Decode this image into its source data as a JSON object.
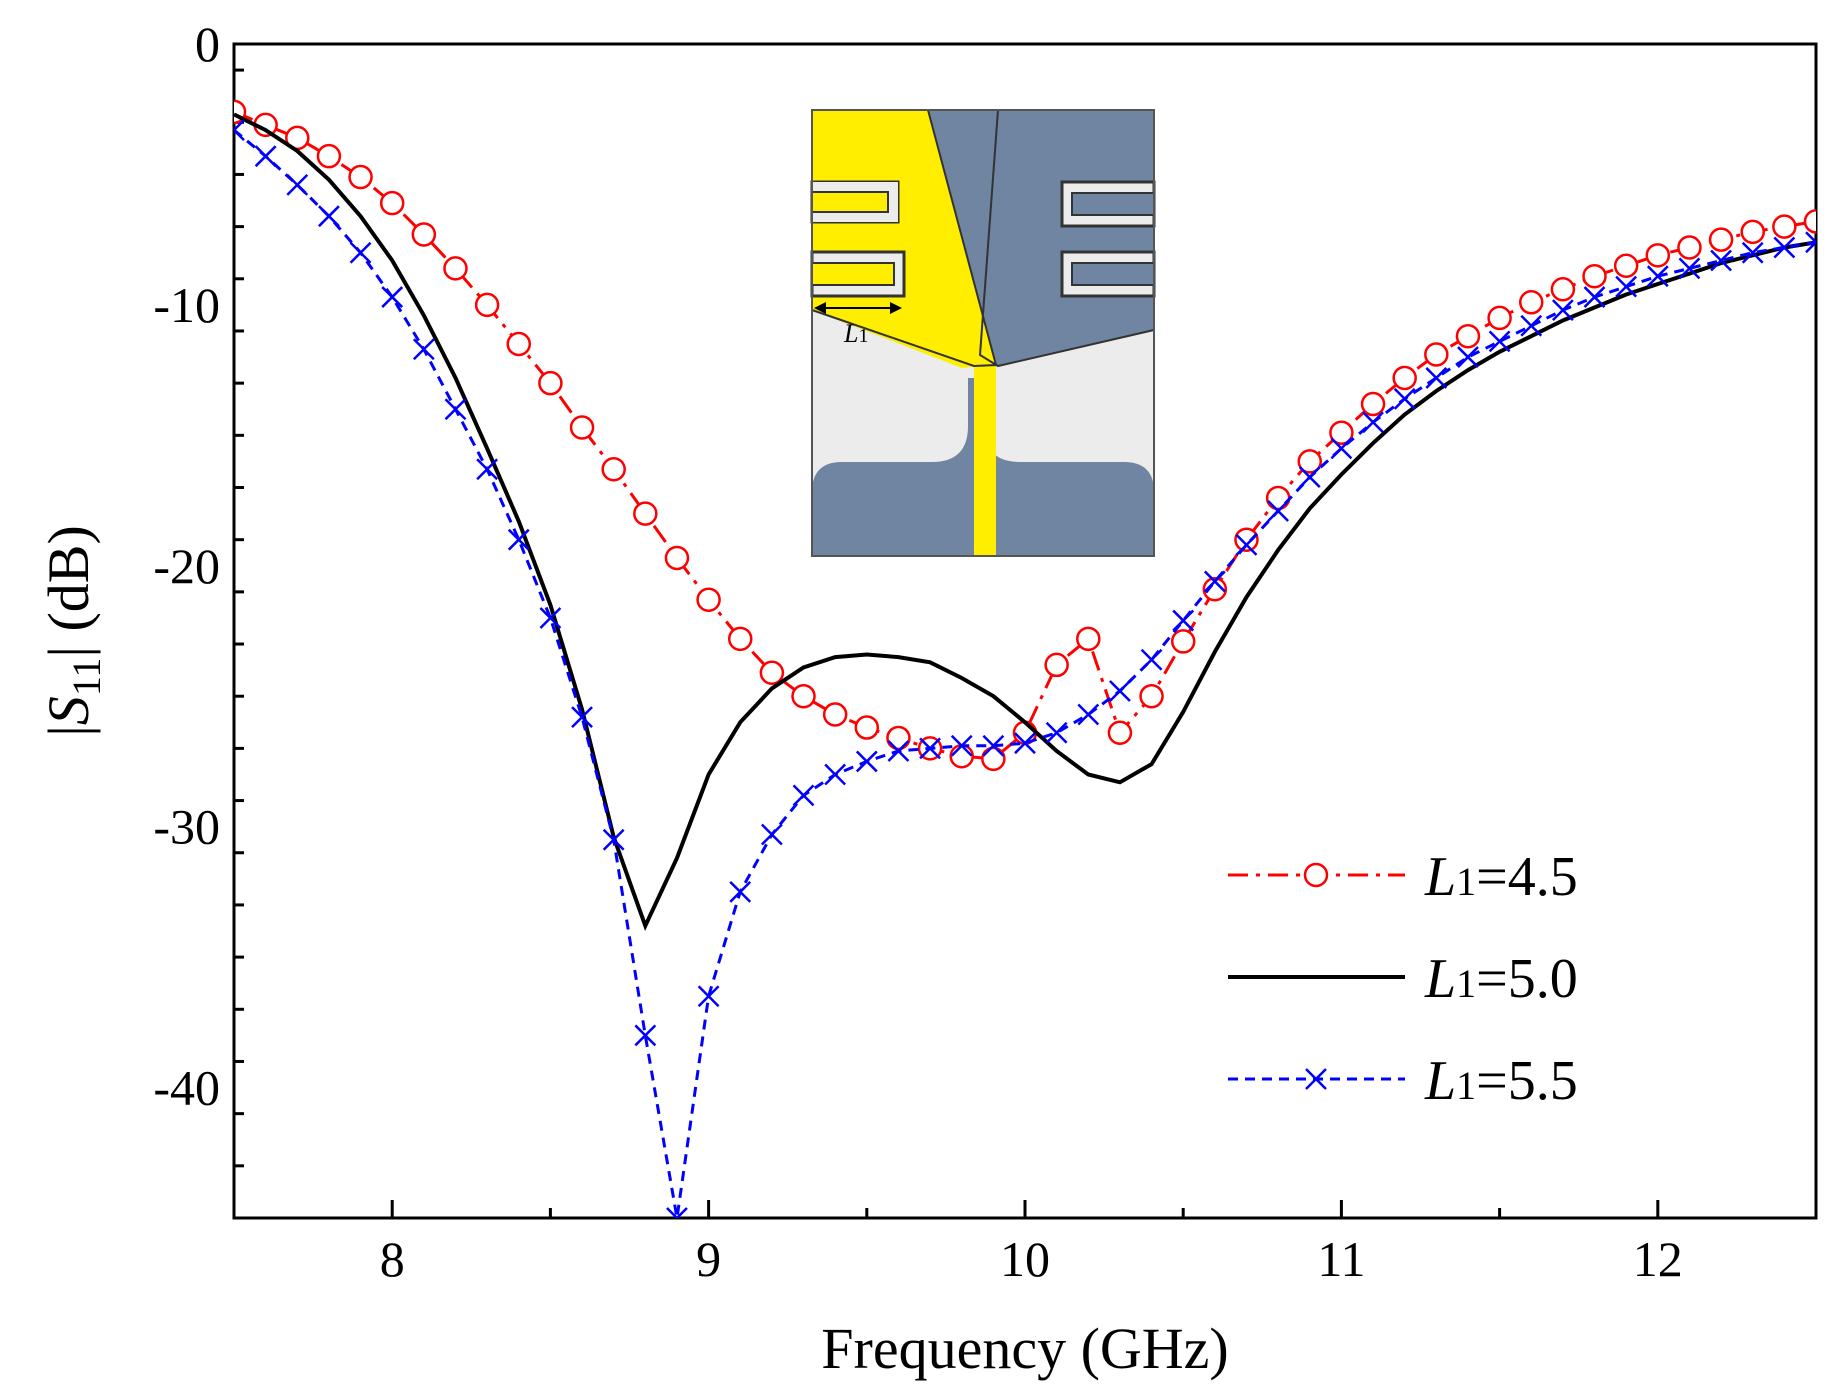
{
  "chart_data": {
    "type": "line",
    "title": "",
    "xlabel": "Frequency (GHz)",
    "ylabel": {
      "prefix": "|",
      "var": "S",
      "sub": "11",
      "suffix": "| (dB)"
    },
    "xlim": [
      7.5,
      12.5
    ],
    "ylim": [
      -45,
      0
    ],
    "xticks": [
      8,
      9,
      10,
      11,
      12
    ],
    "xtick_labels": [
      "8",
      "9",
      "10",
      "11",
      "12"
    ],
    "yticks": [
      0,
      -10,
      -20,
      -30,
      -40
    ],
    "ytick_labels": [
      "0",
      "-10",
      "-20",
      "-30",
      "-40"
    ],
    "grid": false,
    "legend_position": "bottom-right",
    "series": [
      {
        "name": "L1=4.5",
        "label_var": "L",
        "label_sub": "1",
        "label_rest": "=4.5",
        "color": "#ff0000",
        "line_style": "dash-dot",
        "marker": "circle",
        "x": [
          7.5,
          7.6,
          7.7,
          7.8,
          7.9,
          8.0,
          8.1,
          8.2,
          8.3,
          8.4,
          8.5,
          8.6,
          8.7,
          8.8,
          8.9,
          9.0,
          9.1,
          9.2,
          9.3,
          9.4,
          9.5,
          9.6,
          9.7,
          9.8,
          9.9,
          10.0,
          10.1,
          10.2,
          10.3,
          10.4,
          10.5,
          10.6,
          10.7,
          10.8,
          10.9,
          11.0,
          11.1,
          11.2,
          11.3,
          11.4,
          11.5,
          11.6,
          11.7,
          11.8,
          11.9,
          12.0,
          12.1,
          12.2,
          12.3,
          12.4,
          12.5
        ],
        "y": [
          -2.6,
          -3.1,
          -3.6,
          -4.3,
          -5.1,
          -6.1,
          -7.3,
          -8.6,
          -10.0,
          -11.5,
          -13.0,
          -14.7,
          -16.3,
          -18.0,
          -19.7,
          -21.3,
          -22.8,
          -24.1,
          -25.0,
          -25.7,
          -26.2,
          -26.6,
          -27.0,
          -27.3,
          -27.4,
          -26.4,
          -23.8,
          -22.8,
          -26.4,
          -25.0,
          -22.9,
          -20.9,
          -19.0,
          -17.4,
          -16.0,
          -14.9,
          -13.8,
          -12.8,
          -11.9,
          -11.2,
          -10.5,
          -9.9,
          -9.4,
          -8.9,
          -8.5,
          -8.1,
          -7.8,
          -7.5,
          -7.2,
          -7.0,
          -6.8
        ]
      },
      {
        "name": "L1=5.0",
        "label_var": "L",
        "label_sub": "1",
        "label_rest": "=5.0",
        "color": "#000000",
        "line_style": "solid",
        "marker": "none",
        "x": [
          7.5,
          7.6,
          7.7,
          7.8,
          7.9,
          8.0,
          8.1,
          8.2,
          8.3,
          8.4,
          8.5,
          8.6,
          8.7,
          8.8,
          8.9,
          9.0,
          9.1,
          9.2,
          9.3,
          9.4,
          9.5,
          9.6,
          9.7,
          9.8,
          9.9,
          10.0,
          10.1,
          10.2,
          10.3,
          10.4,
          10.5,
          10.6,
          10.7,
          10.8,
          10.9,
          11.0,
          11.1,
          11.2,
          11.3,
          11.4,
          11.5,
          11.6,
          11.7,
          11.8,
          11.9,
          12.0,
          12.1,
          12.2,
          12.3,
          12.4,
          12.5
        ],
        "y": [
          -2.7,
          -3.3,
          -4.1,
          -5.2,
          -6.6,
          -8.3,
          -10.4,
          -12.8,
          -15.5,
          -18.3,
          -21.5,
          -25.5,
          -30.4,
          -33.8,
          -31.2,
          -28.0,
          -26.0,
          -24.7,
          -23.9,
          -23.5,
          -23.4,
          -23.5,
          -23.7,
          -24.3,
          -25.0,
          -26.0,
          -27.1,
          -28.0,
          -28.3,
          -27.6,
          -25.6,
          -23.3,
          -21.2,
          -19.4,
          -17.8,
          -16.5,
          -15.3,
          -14.2,
          -13.3,
          -12.5,
          -11.8,
          -11.2,
          -10.6,
          -10.1,
          -9.6,
          -9.2,
          -8.8,
          -8.4,
          -8.1,
          -7.8,
          -7.6
        ]
      },
      {
        "name": "L1=5.5",
        "label_var": "L",
        "label_sub": "1",
        "label_rest": "=5.5",
        "color": "#0000ff",
        "line_style": "dashed",
        "marker": "x",
        "x": [
          7.5,
          7.6,
          7.7,
          7.8,
          7.9,
          8.0,
          8.1,
          8.2,
          8.3,
          8.4,
          8.5,
          8.6,
          8.7,
          8.8,
          8.9,
          9.0,
          9.1,
          9.2,
          9.3,
          9.4,
          9.5,
          9.6,
          9.7,
          9.8,
          9.9,
          10.0,
          10.1,
          10.2,
          10.3,
          10.4,
          10.5,
          10.6,
          10.7,
          10.8,
          10.9,
          11.0,
          11.1,
          11.2,
          11.3,
          11.4,
          11.5,
          11.6,
          11.7,
          11.8,
          11.9,
          12.0,
          12.1,
          12.2,
          12.3,
          12.4,
          12.5
        ],
        "y": [
          -3.3,
          -4.3,
          -5.4,
          -6.6,
          -8.0,
          -9.7,
          -11.7,
          -14.0,
          -16.3,
          -19.0,
          -22.0,
          -25.8,
          -30.5,
          -38.0,
          -45.0,
          -36.5,
          -32.5,
          -30.3,
          -28.8,
          -28.0,
          -27.5,
          -27.1,
          -27.0,
          -26.9,
          -26.9,
          -26.8,
          -26.4,
          -25.7,
          -24.8,
          -23.6,
          -22.1,
          -20.6,
          -19.2,
          -17.9,
          -16.6,
          -15.5,
          -14.5,
          -13.6,
          -12.8,
          -12.0,
          -11.4,
          -10.8,
          -10.2,
          -9.7,
          -9.3,
          -8.9,
          -8.6,
          -8.3,
          -8.0,
          -7.8,
          -7.6
        ]
      }
    ],
    "inset": {
      "description": "antenna geometry",
      "dimension_var": "L",
      "dimension_sub": "1",
      "colors": {
        "top_layer": "#ffee00",
        "bottom_layer": "#6f85a1",
        "substrate": "#ececec"
      }
    }
  }
}
